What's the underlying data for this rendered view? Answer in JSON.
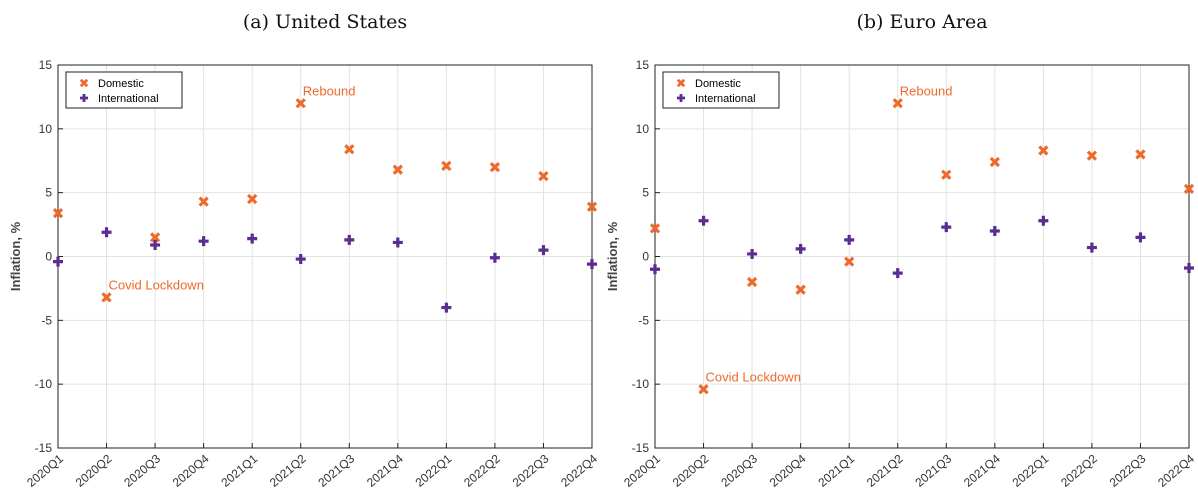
{
  "chart_data": [
    {
      "type": "scatter",
      "title": "(a) United States",
      "y_label": "Inflation, %",
      "categories": [
        "2020Q1",
        "2020Q2",
        "2020Q3",
        "2020Q4",
        "2021Q1",
        "2021Q2",
        "2021Q3",
        "2021Q4",
        "2022Q1",
        "2022Q2",
        "2022Q3",
        "2022Q4"
      ],
      "series": [
        {
          "name": "Domestic",
          "color": "#ee6a2b",
          "marker": "x",
          "values": [
            3.4,
            -3.2,
            1.5,
            4.3,
            4.5,
            12.0,
            8.4,
            6.8,
            7.1,
            7.0,
            6.3,
            3.9
          ]
        },
        {
          "name": "International",
          "color": "#5b2d91",
          "marker": "+",
          "values": [
            -0.4,
            1.9,
            0.9,
            1.2,
            1.4,
            -0.2,
            1.3,
            1.1,
            -4.0,
            -0.1,
            0.5,
            -0.6
          ]
        }
      ],
      "annotations": [
        {
          "text": "Rebound",
          "category": "2021Q2"
        },
        {
          "text": "Covid Lockdown",
          "category": "2020Q2"
        }
      ],
      "ylim": [
        -15,
        15
      ],
      "yticks": [
        -15,
        -10,
        -5,
        0,
        5,
        10,
        15
      ],
      "grid": true,
      "legend": "upper left"
    },
    {
      "type": "scatter",
      "title": "(b) Euro Area",
      "y_label": "Inflation, %",
      "categories": [
        "2020Q1",
        "2020Q2",
        "2020Q3",
        "2020Q4",
        "2021Q1",
        "2021Q2",
        "2021Q3",
        "2021Q4",
        "2022Q1",
        "2022Q2",
        "2022Q3",
        "2022Q4"
      ],
      "series": [
        {
          "name": "Domestic",
          "color": "#ee6a2b",
          "marker": "x",
          "values": [
            2.2,
            -10.4,
            -2.0,
            -2.6,
            -0.4,
            12.0,
            6.4,
            7.4,
            8.3,
            7.9,
            8.0,
            5.3
          ]
        },
        {
          "name": "International",
          "color": "#5b2d91",
          "marker": "+",
          "values": [
            -1.0,
            2.8,
            0.2,
            0.6,
            1.3,
            -1.3,
            2.3,
            2.0,
            2.8,
            0.7,
            1.5,
            -0.9
          ]
        }
      ],
      "annotations": [
        {
          "text": "Rebound",
          "category": "2021Q2"
        },
        {
          "text": "Covid Lockdown",
          "category": "2020Q2"
        }
      ],
      "ylim": [
        -15,
        15
      ],
      "yticks": [
        -15,
        -10,
        -5,
        0,
        5,
        10,
        15
      ],
      "grid": true,
      "legend": "upper left"
    }
  ]
}
